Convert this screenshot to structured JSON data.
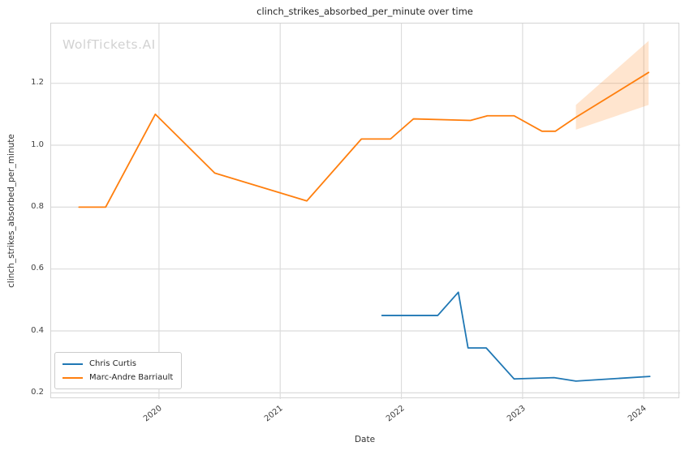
{
  "watermark": "WolfTickets.AI",
  "chart_data": {
    "type": "line",
    "title": "clinch_strikes_absorbed_per_minute over time",
    "xlabel": "Date",
    "ylabel": "clinch_strikes_absorbed_per_minute",
    "xlim": [
      2019.11,
      2024.3
    ],
    "ylim": [
      0.18,
      1.393
    ],
    "x_ticks": [
      2020,
      2021,
      2022,
      2023,
      2024
    ],
    "y_ticks": [
      0.2,
      0.4,
      0.6,
      0.8,
      1.0,
      1.2
    ],
    "grid": true,
    "grid_color": "#dcdcdc",
    "legend_position": "lower-left",
    "series": [
      {
        "name": "Chris Curtis",
        "color": "#1f77b4",
        "points": [
          [
            2021.84,
            0.45
          ],
          [
            2022.3,
            0.45
          ],
          [
            2022.47,
            0.525
          ],
          [
            2022.55,
            0.345
          ],
          [
            2022.7,
            0.345
          ],
          [
            2022.93,
            0.245
          ],
          [
            2023.26,
            0.249
          ],
          [
            2023.44,
            0.238
          ],
          [
            2024.05,
            0.253
          ]
        ]
      },
      {
        "name": "Marc-Andre Barriault",
        "color": "#ff7f0e",
        "points": [
          [
            2019.34,
            0.8
          ],
          [
            2019.56,
            0.8
          ],
          [
            2019.97,
            1.1
          ],
          [
            2020.46,
            0.91
          ],
          [
            2021.22,
            0.82
          ],
          [
            2021.67,
            1.02
          ],
          [
            2021.91,
            1.02
          ],
          [
            2022.1,
            1.085
          ],
          [
            2022.57,
            1.08
          ],
          [
            2022.71,
            1.095
          ],
          [
            2022.93,
            1.095
          ],
          [
            2023.16,
            1.045
          ],
          [
            2023.27,
            1.045
          ],
          [
            2023.44,
            1.09
          ],
          [
            2024.04,
            1.235
          ]
        ]
      }
    ],
    "forecast_band": {
      "series": "Marc-Andre Barriault",
      "color": "#ff7f0e",
      "opacity": 0.2,
      "upper": [
        [
          2023.44,
          1.13
        ],
        [
          2024.04,
          1.337
        ]
      ],
      "lower": [
        [
          2023.44,
          1.05
        ],
        [
          2024.04,
          1.13
        ]
      ]
    }
  }
}
